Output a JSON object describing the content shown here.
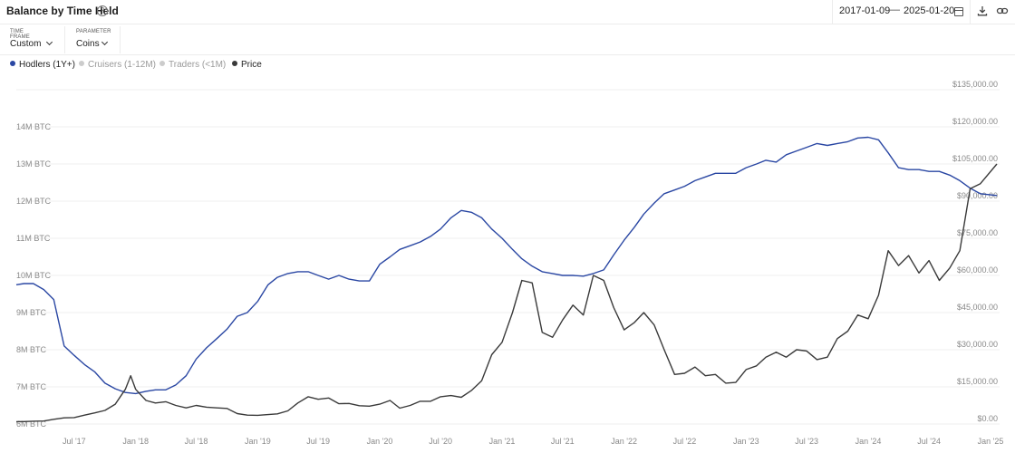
{
  "header": {
    "title": "Balance by Time Held",
    "start_date": "2017-01-09",
    "end_date": "2025-01-20",
    "icons": [
      "help-icon",
      "calendar-icon",
      "download-icon",
      "link-icon"
    ]
  },
  "controls": {
    "time_frame_label": "TIME FRAME",
    "time_frame_value": "Custom",
    "parameter_label": "PARAMETER",
    "parameter_value": "Coins"
  },
  "legend": [
    {
      "label": "Hodlers (1Y+)",
      "color": "#2a47a3",
      "active": true
    },
    {
      "label": "Cruisers (1-12M)",
      "color": "#cccccc",
      "active": false
    },
    {
      "label": "Traders (<1M)",
      "color": "#cccccc",
      "active": false
    },
    {
      "label": "Price",
      "color": "#3a3a3a",
      "active": true
    }
  ],
  "chart_data": {
    "type": "line",
    "x_tick_labels": [
      "Jul '17",
      "Jan '18",
      "Jul '18",
      "Jan '19",
      "Jul '19",
      "Jan '20",
      "Jul '20",
      "Jan '21",
      "Jul '21",
      "Jan '22",
      "Jul '22",
      "Jan '23",
      "Jul '23",
      "Jan '24",
      "Jul '24",
      "Jan '25"
    ],
    "x_ticks": [
      "2017-07-01",
      "2018-01-01",
      "2018-07-01",
      "2019-01-01",
      "2019-07-01",
      "2020-01-01",
      "2020-07-01",
      "2021-01-01",
      "2021-07-01",
      "2022-01-01",
      "2022-07-01",
      "2023-01-01",
      "2023-07-01",
      "2024-01-01",
      "2024-07-01",
      "2025-01-01"
    ],
    "xlim": [
      "2017-01-09",
      "2025-01-20"
    ],
    "y_left_ticks": [
      "6M BTC",
      "7M BTC",
      "8M BTC",
      "9M BTC",
      "10M BTC",
      "11M BTC",
      "12M BTC",
      "13M BTC",
      "14M BTC"
    ],
    "y_left_values": [
      6,
      7,
      8,
      9,
      10,
      11,
      12,
      13,
      14
    ],
    "y_left_unit": "M BTC",
    "y_left_lim": [
      6,
      15
    ],
    "y_right_ticks": [
      "$0.00",
      "$15,000.00",
      "$30,000.00",
      "$45,000.00",
      "$60,000.00",
      "$75,000.00",
      "$90,000.00",
      "$105,000.00",
      "$120,000.00",
      "$135,000.00"
    ],
    "y_right_values": [
      0,
      15000,
      30000,
      45000,
      60000,
      75000,
      90000,
      105000,
      120000,
      135000
    ],
    "y_right_lim": [
      0,
      135000
    ],
    "grid": true,
    "series": [
      {
        "name": "Hodlers (1Y+)",
        "color": "#2a47a3",
        "axis": "left",
        "x": [
          "2017-01-09",
          "2017-02-01",
          "2017-03-01",
          "2017-04-01",
          "2017-05-01",
          "2017-06-01",
          "2017-07-01",
          "2017-08-01",
          "2017-09-01",
          "2017-10-01",
          "2017-11-01",
          "2017-12-01",
          "2018-01-01",
          "2018-02-01",
          "2018-03-01",
          "2018-04-01",
          "2018-05-01",
          "2018-06-01",
          "2018-07-01",
          "2018-08-01",
          "2018-09-01",
          "2018-10-01",
          "2018-11-01",
          "2018-12-01",
          "2019-01-01",
          "2019-02-01",
          "2019-03-01",
          "2019-04-01",
          "2019-05-01",
          "2019-06-01",
          "2019-07-01",
          "2019-08-01",
          "2019-09-01",
          "2019-10-01",
          "2019-11-01",
          "2019-12-01",
          "2020-01-01",
          "2020-02-01",
          "2020-03-01",
          "2020-04-01",
          "2020-05-01",
          "2020-06-01",
          "2020-07-01",
          "2020-08-01",
          "2020-09-01",
          "2020-10-01",
          "2020-11-01",
          "2020-12-01",
          "2021-01-01",
          "2021-02-01",
          "2021-03-01",
          "2021-04-01",
          "2021-05-01",
          "2021-06-01",
          "2021-07-01",
          "2021-08-01",
          "2021-09-01",
          "2021-10-01",
          "2021-11-01",
          "2021-12-01",
          "2022-01-01",
          "2022-02-01",
          "2022-03-01",
          "2022-04-01",
          "2022-05-01",
          "2022-06-01",
          "2022-07-01",
          "2022-08-01",
          "2022-09-01",
          "2022-10-01",
          "2022-11-01",
          "2022-12-01",
          "2023-01-01",
          "2023-02-01",
          "2023-03-01",
          "2023-04-01",
          "2023-05-01",
          "2023-06-01",
          "2023-07-01",
          "2023-08-01",
          "2023-09-01",
          "2023-10-01",
          "2023-11-01",
          "2023-12-01",
          "2024-01-01",
          "2024-02-01",
          "2024-03-01",
          "2024-04-01",
          "2024-05-01",
          "2024-06-01",
          "2024-07-01",
          "2024-08-01",
          "2024-09-01",
          "2024-10-01",
          "2024-11-01",
          "2024-12-01",
          "2025-01-20"
        ],
        "values": [
          9.75,
          9.78,
          9.78,
          9.62,
          9.35,
          8.1,
          7.85,
          7.6,
          7.4,
          7.1,
          6.95,
          6.85,
          6.82,
          6.88,
          6.92,
          6.92,
          7.05,
          7.3,
          7.75,
          8.05,
          8.3,
          8.55,
          8.9,
          9.0,
          9.3,
          9.75,
          9.95,
          10.05,
          10.1,
          10.1,
          10.0,
          9.9,
          10.0,
          9.9,
          9.85,
          9.85,
          10.3,
          10.5,
          10.7,
          10.8,
          10.9,
          11.05,
          11.25,
          11.55,
          11.75,
          11.7,
          11.55,
          11.25,
          11.0,
          10.7,
          10.45,
          10.25,
          10.1,
          10.05,
          10.0,
          10.0,
          9.98,
          10.05,
          10.15,
          10.55,
          10.95,
          11.3,
          11.65,
          11.95,
          12.2,
          12.3,
          12.4,
          12.55,
          12.65,
          12.75,
          12.75,
          12.75,
          12.9,
          13.0,
          13.1,
          13.05,
          13.25,
          13.35,
          13.45,
          13.55,
          13.5,
          13.55,
          13.6,
          13.7,
          13.72,
          13.65,
          13.3,
          12.9,
          12.85,
          12.85,
          12.8,
          12.8,
          12.7,
          12.55,
          12.35,
          12.2,
          12.15
        ]
      },
      {
        "name": "Price",
        "color": "#3a3a3a",
        "axis": "right",
        "x": [
          "2017-01-09",
          "2017-02-01",
          "2017-03-01",
          "2017-04-01",
          "2017-05-01",
          "2017-06-01",
          "2017-07-01",
          "2017-08-01",
          "2017-09-01",
          "2017-10-01",
          "2017-11-01",
          "2017-12-01",
          "2017-12-17",
          "2018-01-01",
          "2018-02-01",
          "2018-03-01",
          "2018-04-01",
          "2018-05-01",
          "2018-06-01",
          "2018-07-01",
          "2018-08-01",
          "2018-09-01",
          "2018-10-01",
          "2018-11-01",
          "2018-12-01",
          "2019-01-01",
          "2019-02-01",
          "2019-03-01",
          "2019-04-01",
          "2019-05-01",
          "2019-06-01",
          "2019-07-01",
          "2019-08-01",
          "2019-09-01",
          "2019-10-01",
          "2019-11-01",
          "2019-12-01",
          "2020-01-01",
          "2020-02-01",
          "2020-03-01",
          "2020-04-01",
          "2020-05-01",
          "2020-06-01",
          "2020-07-01",
          "2020-08-01",
          "2020-09-01",
          "2020-10-01",
          "2020-11-01",
          "2020-12-01",
          "2021-01-01",
          "2021-02-01",
          "2021-03-01",
          "2021-04-01",
          "2021-05-01",
          "2021-06-01",
          "2021-07-01",
          "2021-08-01",
          "2021-09-01",
          "2021-10-01",
          "2021-11-01",
          "2021-12-01",
          "2022-01-01",
          "2022-02-01",
          "2022-03-01",
          "2022-04-01",
          "2022-05-01",
          "2022-06-01",
          "2022-07-01",
          "2022-08-01",
          "2022-09-01",
          "2022-10-01",
          "2022-11-01",
          "2022-12-01",
          "2023-01-01",
          "2023-02-01",
          "2023-03-01",
          "2023-04-01",
          "2023-05-01",
          "2023-06-01",
          "2023-07-01",
          "2023-08-01",
          "2023-09-01",
          "2023-10-01",
          "2023-11-01",
          "2023-12-01",
          "2024-01-01",
          "2024-02-01",
          "2024-03-01",
          "2024-04-01",
          "2024-05-01",
          "2024-06-01",
          "2024-07-01",
          "2024-08-01",
          "2024-09-01",
          "2024-10-01",
          "2024-11-01",
          "2024-12-01",
          "2025-01-20"
        ],
        "values": [
          900,
          1000,
          1150,
          1200,
          1900,
          2500,
          2600,
          3600,
          4500,
          5500,
          8000,
          14000,
          19500,
          14000,
          9500,
          8500,
          9000,
          7500,
          6500,
          7500,
          6800,
          6500,
          6300,
          4200,
          3600,
          3500,
          3800,
          4100,
          5300,
          8500,
          11000,
          10000,
          10500,
          8200,
          8300,
          7400,
          7200,
          8000,
          9500,
          6400,
          7500,
          9200,
          9200,
          11000,
          11500,
          10800,
          13500,
          17500,
          28000,
          33000,
          45000,
          58000,
          57000,
          37000,
          35000,
          42000,
          48000,
          44000,
          60000,
          58000,
          47000,
          38000,
          41000,
          45000,
          40000,
          30000,
          20000,
          20500,
          23000,
          19500,
          20000,
          16500,
          16800,
          22000,
          23500,
          27000,
          29000,
          27000,
          30000,
          29500,
          26000,
          27000,
          34500,
          37500,
          44000,
          42500,
          52000,
          70000,
          64000,
          68000,
          61000,
          66000,
          58000,
          63000,
          70000,
          95000,
          97000,
          105000
        ]
      }
    ]
  }
}
